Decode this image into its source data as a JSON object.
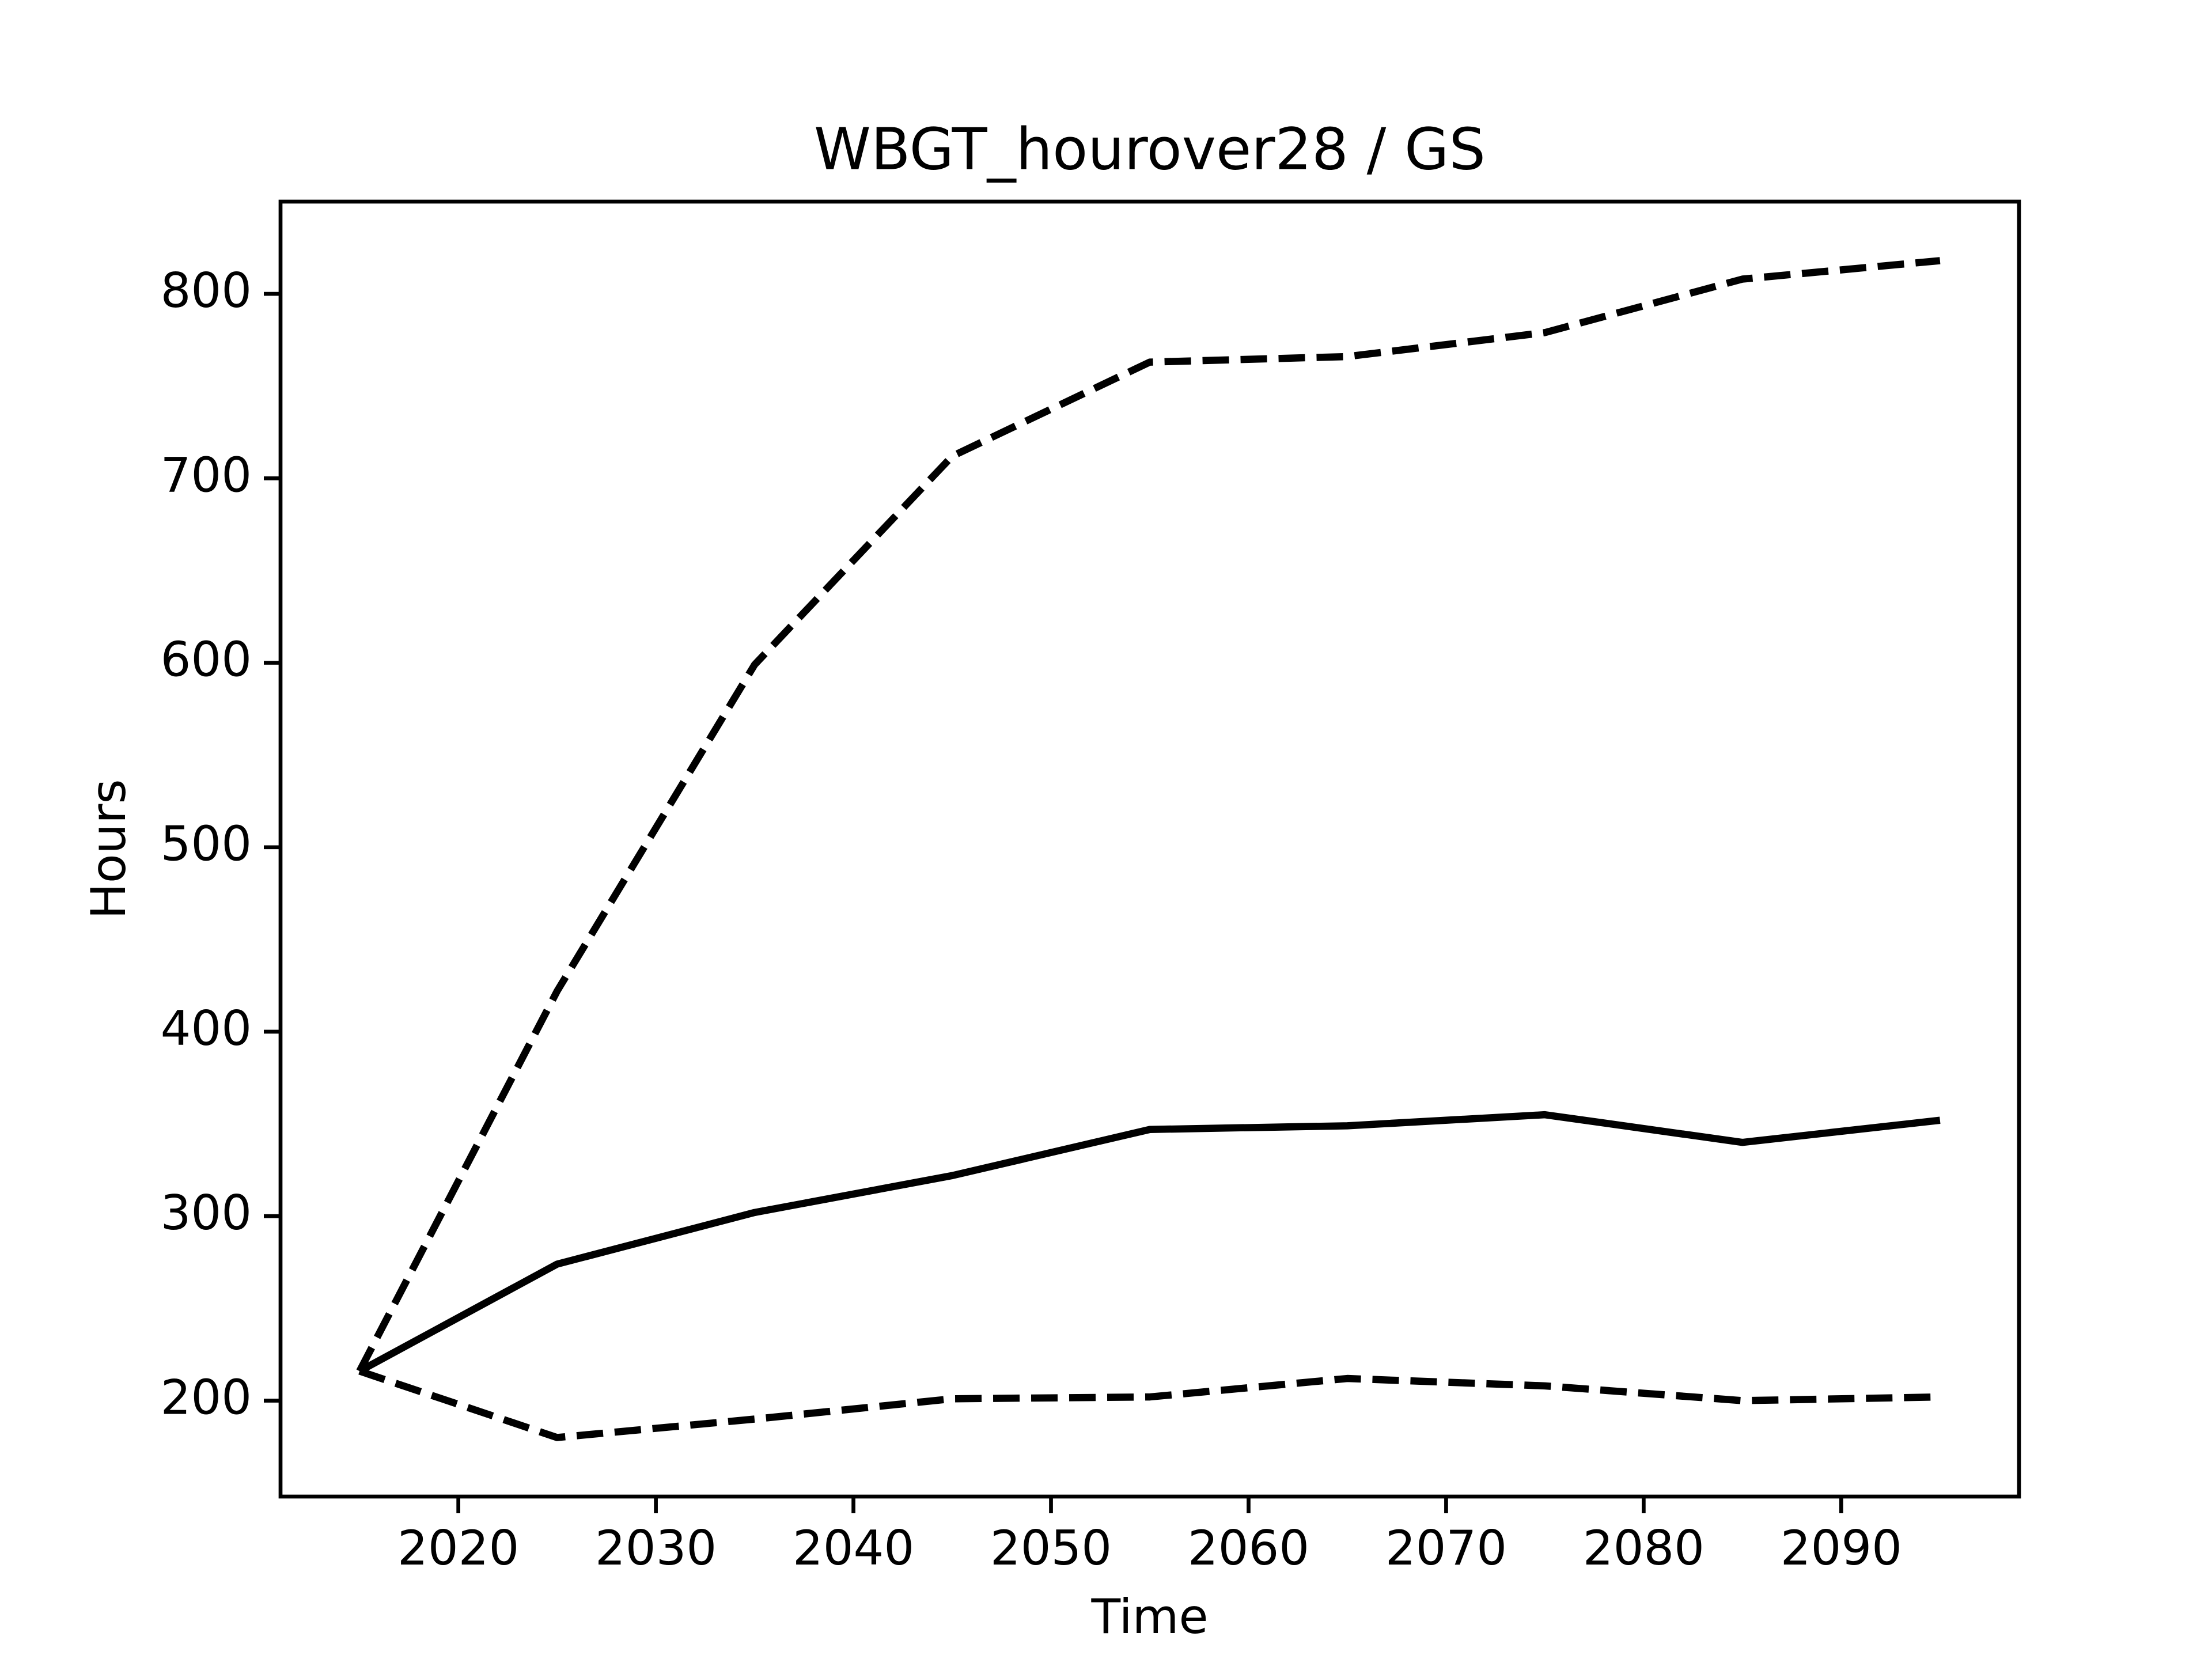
{
  "chart_data": {
    "type": "line",
    "title": "WBGT_hourover28 / GS",
    "x_label": "Time",
    "y_label": "Hours",
    "x": [
      2015,
      2025,
      2035,
      2045,
      2055,
      2065,
      2075,
      2085,
      2095
    ],
    "series": [
      {
        "color": "#000000",
        "linestyle": "solid",
        "values": [
          216,
          274,
          302,
          322,
          347,
          349,
          355,
          340,
          352
        ]
      },
      {
        "color": "#000000",
        "linestyle": "dashed",
        "values": [
          216,
          422,
          599,
          712,
          763,
          766,
          779,
          808,
          818
        ]
      },
      {
        "color": "#000000",
        "linestyle": "dashed",
        "values": [
          216,
          180,
          190,
          201,
          202,
          212,
          208,
          200,
          202
        ]
      }
    ],
    "xlim": [
      2011,
      2099
    ],
    "xticks": [
      2020,
      2030,
      2040,
      2050,
      2060,
      2070,
      2080,
      2090
    ],
    "ylim": [
      148,
      850
    ],
    "yticks": [
      200,
      300,
      400,
      500,
      600,
      700,
      800
    ],
    "grid": false
  }
}
